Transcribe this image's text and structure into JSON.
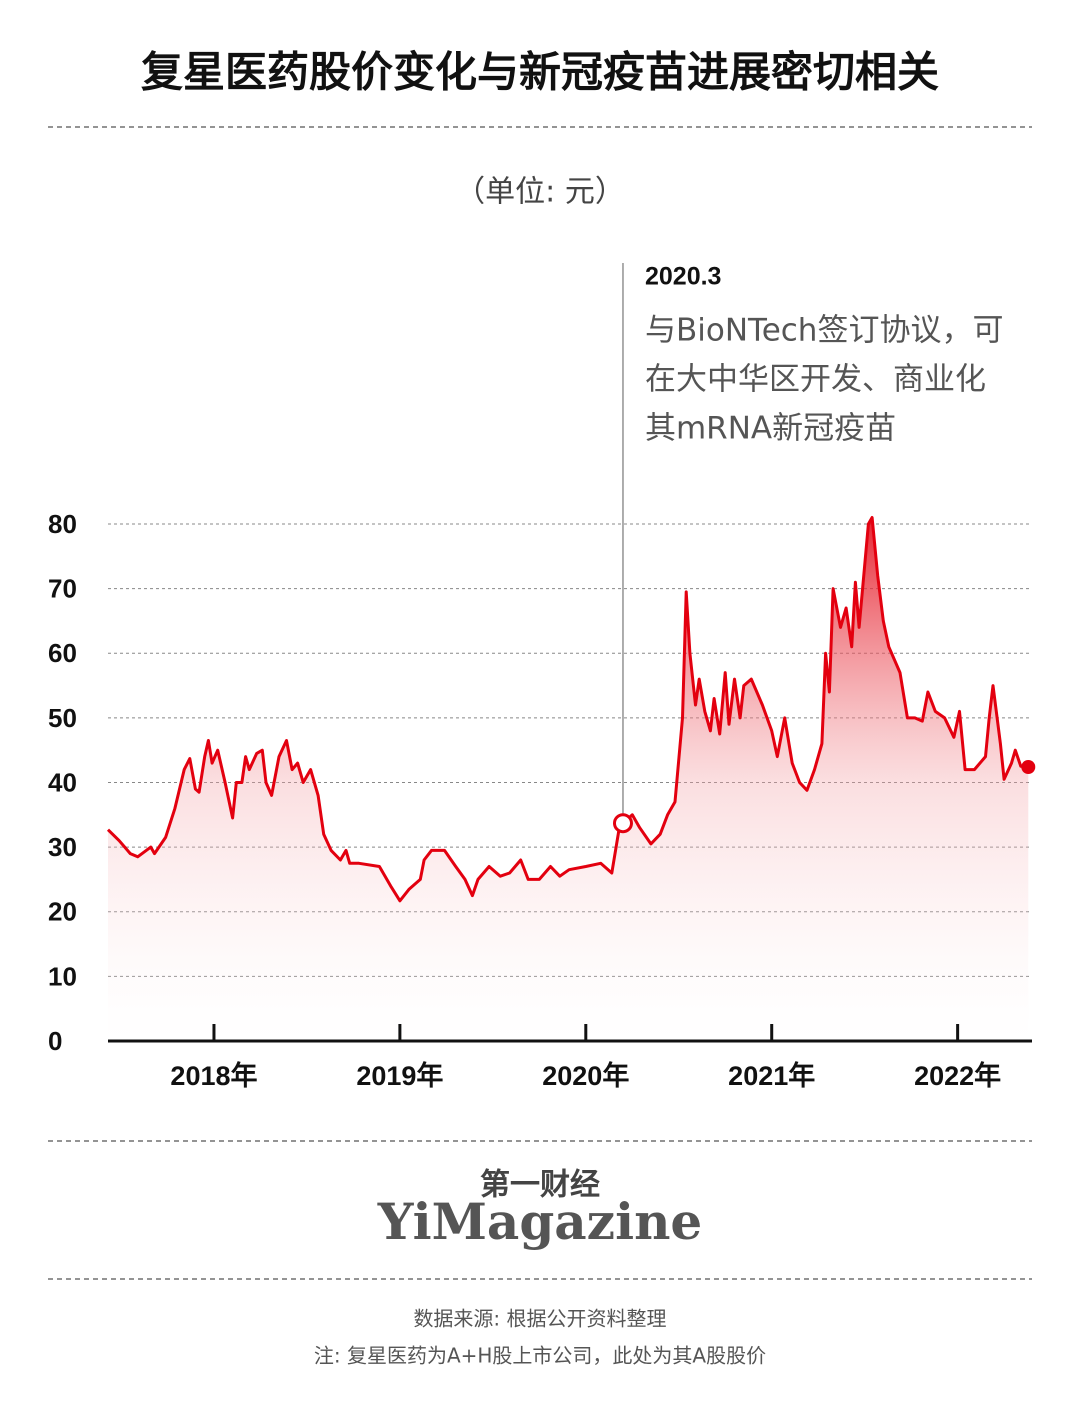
{
  "chart_data": {
    "type": "line",
    "title": "复星医药股价变化与新冠疫苗进展密切相关",
    "unit": "（单位: 元）",
    "x": [
      2017.43,
      2017.49,
      2017.55,
      2017.59,
      2017.66,
      2017.68,
      2017.74,
      2017.79,
      2017.84,
      2017.87,
      2017.9,
      2017.92,
      2017.95,
      2017.97,
      2017.99,
      2018.02,
      2018.06,
      2018.1,
      2018.12,
      2018.15,
      2018.17,
      2018.19,
      2018.23,
      2018.26,
      2018.28,
      2018.31,
      2018.35,
      2018.39,
      2018.42,
      2018.45,
      2018.48,
      2018.52,
      2018.56,
      2018.59,
      2018.63,
      2018.68,
      2018.71,
      2018.73,
      2018.78,
      2018.89,
      2018.95,
      2019.0,
      2019.05,
      2019.11,
      2019.13,
      2019.17,
      2019.24,
      2019.3,
      2019.35,
      2019.39,
      2019.42,
      2019.48,
      2019.54,
      2019.59,
      2019.65,
      2019.69,
      2019.75,
      2019.81,
      2019.86,
      2019.91,
      2020.0,
      2020.08,
      2020.14,
      2020.18,
      2020.2,
      2020.25,
      2020.29,
      2020.35,
      2020.4,
      2020.44,
      2020.48,
      2020.52,
      2020.54,
      2020.56,
      2020.59,
      2020.61,
      2020.64,
      2020.67,
      2020.69,
      2020.72,
      2020.75,
      2020.77,
      2020.8,
      2020.83,
      2020.85,
      2020.89,
      2020.95,
      2021.0,
      2021.03,
      2021.07,
      2021.11,
      2021.15,
      2021.19,
      2021.23,
      2021.27,
      2021.29,
      2021.31,
      2021.33,
      2021.37,
      2021.4,
      2021.43,
      2021.45,
      2021.47,
      2021.52,
      2021.54,
      2021.57,
      2021.6,
      2021.63,
      2021.69,
      2021.73,
      2021.77,
      2021.81,
      2021.84,
      2021.88,
      2021.93,
      2021.98,
      2022.01,
      2022.04,
      2022.09,
      2022.15,
      2022.17,
      2022.19,
      2022.23,
      2022.25,
      2022.29,
      2022.31,
      2022.34,
      2022.38
    ],
    "series": [
      {
        "color": "#e3000f",
        "values": [
          32.7,
          31,
          29,
          28.5,
          30,
          29,
          31.5,
          36,
          42,
          43.7,
          39,
          38.5,
          44,
          46.5,
          43,
          45,
          40,
          34.5,
          40,
          40,
          44,
          42,
          44.5,
          45,
          40,
          38,
          44,
          46.5,
          42,
          43,
          40,
          42,
          38,
          32,
          29.5,
          28,
          29.5,
          27.5,
          27.5,
          27,
          24,
          21.7,
          23.5,
          25,
          28,
          29.5,
          29.5,
          27,
          25,
          22.5,
          25,
          27,
          25.5,
          26,
          28,
          25,
          25,
          27,
          25.5,
          26.5,
          27,
          27.5,
          26,
          33,
          33.7,
          35,
          33,
          30.5,
          32,
          35,
          37,
          50,
          69.5,
          60,
          52,
          56,
          51,
          48,
          53,
          47.5,
          57,
          49,
          56,
          50,
          55,
          56,
          52,
          48,
          44,
          50,
          43,
          40,
          38.8,
          42,
          46,
          60,
          54,
          70,
          64,
          67,
          61,
          71,
          64,
          80,
          81,
          72,
          65,
          61,
          57,
          50,
          50,
          49.5,
          54,
          51,
          50,
          47,
          51,
          42,
          42,
          44,
          50,
          55,
          46,
          40.5,
          43,
          45,
          42.5,
          42.4
        ]
      }
    ],
    "xlim": [
      2017.43,
      2022.4
    ],
    "xticks": [
      {
        "value": 2018,
        "label": "2018年"
      },
      {
        "value": 2019,
        "label": "2019年"
      },
      {
        "value": 2020,
        "label": "2020年"
      },
      {
        "value": 2021,
        "label": "2021年"
      },
      {
        "value": 2022,
        "label": "2022年"
      }
    ],
    "ylim": [
      0,
      80
    ],
    "yticks": [
      0,
      10,
      20,
      30,
      40,
      50,
      60,
      70,
      80
    ],
    "grid": true,
    "annotation": {
      "x": 2020.2,
      "y": 33.7,
      "label": "2020.3",
      "text": [
        "与BioNTech签订协议，可",
        "在大中华区开发、商业化",
        "其mRNA新冠疫苗"
      ]
    },
    "logo": [
      "第一财经",
      "YiMagazine"
    ],
    "notes": [
      "数据来源: 根据公开资料整理",
      "注: 复星医药为A+H股上市公司，此处为其A股股价"
    ]
  }
}
